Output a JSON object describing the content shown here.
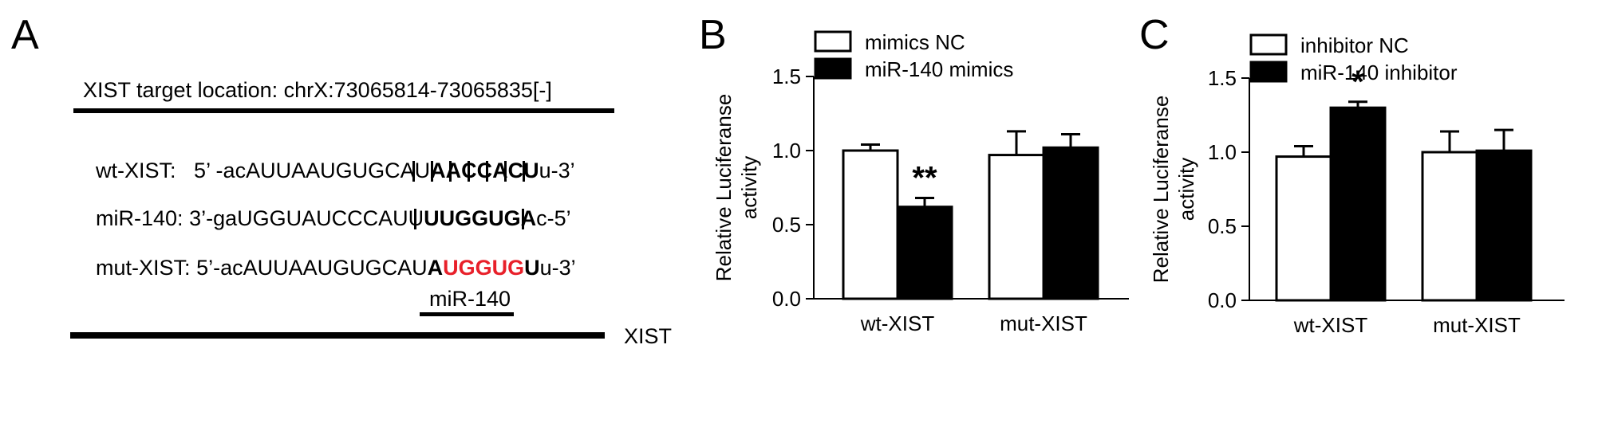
{
  "panels": {
    "a": "A",
    "b": "B",
    "c": "C"
  },
  "panel_a": {
    "title": "XIST target location: chrX:73065814-73065835[-]",
    "wt_label": "wt-XIST:",
    "wt_prefix": "5’ -acAUUAAUGUGCAU",
    "wt_bold": "AACCACU",
    "wt_suffix": "u-3’",
    "mir_label": "miR-140:",
    "mir_prefix": "3’-gaUGGUAUCCCAUU",
    "mir_bold": "UUGGUGA",
    "mir_suffix": "c-5’",
    "mut_label": "mut-XIST:",
    "mut_prefix": "5’-acAUUAAUGUGCAU",
    "mut_bold_a": "A",
    "mut_red": "UGGUG",
    "mut_bold_u": "U",
    "mut_suffix": "u-3’",
    "mir_bar_label": "miR-140",
    "gene_label": "XIST"
  },
  "chart_data": [
    {
      "type": "bar",
      "ylabel": "Relative Luciferanse activity",
      "ylabel_lines": [
        "Relative Luciferanse",
        "activity"
      ],
      "ylim": [
        0,
        1.5
      ],
      "yticks": [
        "0.0",
        "0.5",
        "1.0",
        "1.5"
      ],
      "categories": [
        "wt-XIST",
        "mut-XIST"
      ],
      "legend_position": "top",
      "series": [
        {
          "name": "mimics NC",
          "color": "#ffffff",
          "values": [
            1.0,
            0.97
          ],
          "errors": [
            0.04,
            0.16
          ]
        },
        {
          "name": "miR-140 mimics",
          "color": "#000000",
          "values": [
            0.62,
            1.02
          ],
          "errors": [
            0.06,
            0.09
          ]
        }
      ],
      "annotations": [
        {
          "category": 0,
          "series": 1,
          "text": "**"
        }
      ]
    },
    {
      "type": "bar",
      "ylabel": "Relative Luciferanse activity",
      "ylabel_lines": [
        "Relative Luciferanse",
        "activity"
      ],
      "ylim": [
        0,
        1.5
      ],
      "yticks": [
        "0.0",
        "0.5",
        "1.0",
        "1.5"
      ],
      "categories": [
        "wt-XIST",
        "mut-XIST"
      ],
      "legend_position": "top",
      "series": [
        {
          "name": "inhibitor NC",
          "color": "#ffffff",
          "values": [
            0.97,
            1.0
          ],
          "errors": [
            0.07,
            0.14
          ]
        },
        {
          "name": "miR-140 inhibitor",
          "color": "#000000",
          "values": [
            1.3,
            1.01
          ],
          "errors": [
            0.04,
            0.14
          ]
        }
      ],
      "annotations": [
        {
          "category": 0,
          "series": 1,
          "text": "*"
        }
      ]
    }
  ]
}
